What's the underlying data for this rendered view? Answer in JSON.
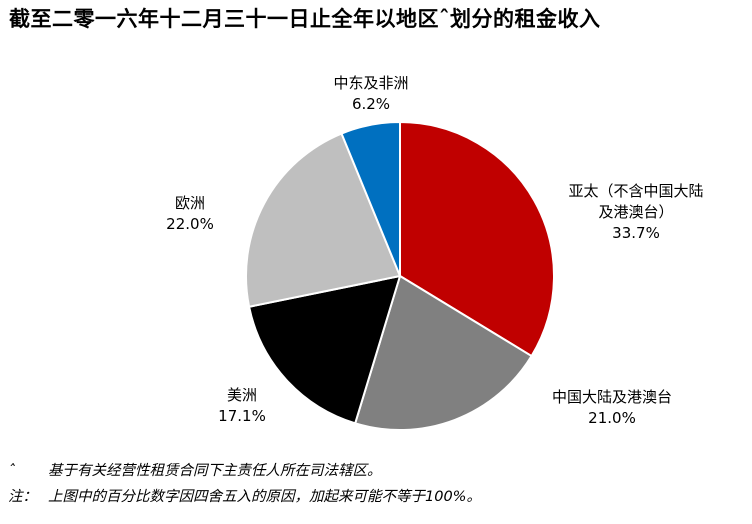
{
  "title": "截至二零一六年十二月三十一日止全年以地区ˆ划分的租金收入",
  "chart_data": {
    "type": "pie",
    "title": "截至二零一六年十二月三十一日止全年以地区ˆ划分的租金收入",
    "start": "12 o'clock",
    "direction": "clockwise",
    "slices": [
      {
        "label_lines": [
          "亚太（不含中国大陆",
          "及港澳台）"
        ],
        "value": 33.7,
        "value_label": "33.7%",
        "color": "#C00000"
      },
      {
        "label_lines": [
          "中国大陆及港澳台"
        ],
        "value": 21.0,
        "value_label": "21.0%",
        "color": "#808080"
      },
      {
        "label_lines": [
          "美洲"
        ],
        "value": 17.1,
        "value_label": "17.1%",
        "color": "#000000"
      },
      {
        "label_lines": [
          "欧洲"
        ],
        "value": 22.0,
        "value_label": "22.0%",
        "color": "#BFBFBF"
      },
      {
        "label_lines": [
          "中东及非洲"
        ],
        "value": 6.2,
        "value_label": "6.2%",
        "color": "#0070C0"
      }
    ]
  },
  "footnotes": [
    {
      "marker": "ˆ",
      "text": "基于有关经营性租赁合同下主责任人所在司法辖区。"
    },
    {
      "marker": "注：",
      "text": "上图中的百分比数字因四舍五入的原因，加起来可能不等于100%。"
    }
  ]
}
